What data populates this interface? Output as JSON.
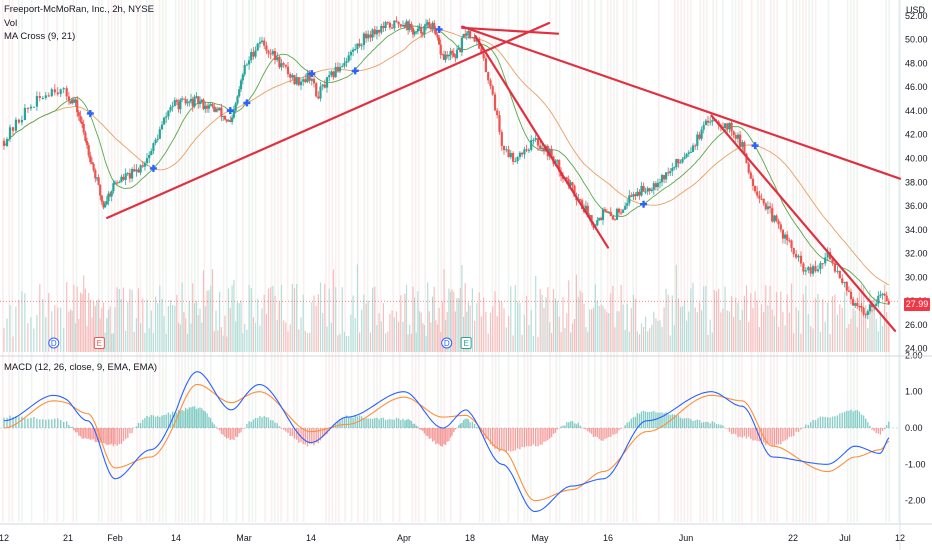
{
  "header": {
    "symbol_line": "Freeport-McMoRan, Inc., 2h, NYSE",
    "volume_label": "Vol",
    "ma_label": "MA Cross (9, 21)",
    "macd_label": "MACD (12, 26, close, 9, EMA, EMA)"
  },
  "price_axis": {
    "currency": "USD",
    "ticks": [
      "52.00",
      "50.00",
      "48.00",
      "46.00",
      "44.00",
      "42.00",
      "40.00",
      "38.00",
      "36.00",
      "34.00",
      "32.00",
      "30.00",
      "28.00",
      "26.00",
      "24.00"
    ],
    "last_price": "27.99"
  },
  "macd_axis": {
    "ticks": [
      "2.00",
      "1.00",
      "0.00",
      "-1.00",
      "-2.00"
    ]
  },
  "time_axis": {
    "ticks": [
      "12",
      "21",
      "Feb",
      "14",
      "Mar",
      "14",
      "Apr",
      "18",
      "May",
      "16",
      "Jun",
      "22",
      "Jul",
      "12"
    ]
  },
  "events": [
    {
      "letter": "D",
      "kind": "dividend"
    },
    {
      "letter": "E",
      "kind": "earnings"
    },
    {
      "letter": "D",
      "kind": "dividend"
    },
    {
      "letter": "E",
      "kind": "earnings"
    }
  ],
  "colors": {
    "up": "#26a69a",
    "down": "#ef5350",
    "trendline": "#e0303f",
    "ma_fast": "#7cbf6a",
    "ma_slow": "#e07a2f",
    "macd_line": "#2962ff",
    "signal_line": "#ff8f3a",
    "cross_marker": "#2962ff",
    "dividend": "#2962ff",
    "earnings": "#ef5350"
  },
  "chart_data": [
    {
      "type": "candlestick",
      "title": "Freeport-McMoRan, Inc., 2h, NYSE",
      "ylabel": "USD",
      "ylim": [
        24,
        53
      ],
      "close_path": [
        {
          "x": "Jan 12",
          "y": 41.5
        },
        {
          "x": "Jan 15",
          "y": 44.0
        },
        {
          "x": "Jan 19",
          "y": 46.0
        },
        {
          "x": "Jan 23",
          "y": 44.5
        },
        {
          "x": "Jan 26",
          "y": 41.0
        },
        {
          "x": "Jan 30",
          "y": 36.0
        },
        {
          "x": "Feb 2",
          "y": 38.0
        },
        {
          "x": "Feb 6",
          "y": 38.8
        },
        {
          "x": "Feb 9",
          "y": 40.5
        },
        {
          "x": "Feb 13",
          "y": 44.5
        },
        {
          "x": "Feb 19",
          "y": 44.8
        },
        {
          "x": "Feb 24",
          "y": 44.0
        },
        {
          "x": "Feb 27",
          "y": 42.8
        },
        {
          "x": "Mar 1",
          "y": 47.5
        },
        {
          "x": "Mar 4",
          "y": 50.0
        },
        {
          "x": "Mar 7",
          "y": 48.5
        },
        {
          "x": "Mar 11",
          "y": 46.5
        },
        {
          "x": "Mar 14",
          "y": 47.0
        },
        {
          "x": "Mar 15",
          "y": 45.2
        },
        {
          "x": "Mar 19",
          "y": 47.5
        },
        {
          "x": "Mar 21",
          "y": 48.5
        },
        {
          "x": "Mar 25",
          "y": 50.5
        },
        {
          "x": "Mar 28",
          "y": 51.0
        },
        {
          "x": "Apr 1",
          "y": 51.5
        },
        {
          "x": "Apr 4",
          "y": 50.5
        },
        {
          "x": "Apr 8",
          "y": 51.3
        },
        {
          "x": "Apr 11",
          "y": 48.5
        },
        {
          "x": "Apr 15",
          "y": 48.8
        },
        {
          "x": "Apr 17",
          "y": 50.8
        },
        {
          "x": "Apr 19",
          "y": 50.2
        },
        {
          "x": "Apr 22",
          "y": 46.0
        },
        {
          "x": "Apr 24",
          "y": 41.0
        },
        {
          "x": "Apr 26",
          "y": 40.0
        },
        {
          "x": "Apr 30",
          "y": 41.5
        },
        {
          "x": "May 3",
          "y": 40.5
        },
        {
          "x": "May 8",
          "y": 37.5
        },
        {
          "x": "May 13",
          "y": 34.5
        },
        {
          "x": "May 15",
          "y": 35.5
        },
        {
          "x": "May 17",
          "y": 35.0
        },
        {
          "x": "May 21",
          "y": 37.0
        },
        {
          "x": "May 24",
          "y": 37.5
        },
        {
          "x": "May 29",
          "y": 39.0
        },
        {
          "x": "Jun 3",
          "y": 41.5
        },
        {
          "x": "Jun 6",
          "y": 43.5
        },
        {
          "x": "Jun 10",
          "y": 42.5
        },
        {
          "x": "Jun 12",
          "y": 41.0
        },
        {
          "x": "Jun 14",
          "y": 38.0
        },
        {
          "x": "Jun 18",
          "y": 35.0
        },
        {
          "x": "Jun 21",
          "y": 33.0
        },
        {
          "x": "Jun 24",
          "y": 30.5
        },
        {
          "x": "Jun 26",
          "y": 30.5
        },
        {
          "x": "Jun 28",
          "y": 31.8
        },
        {
          "x": "Jul 1",
          "y": 29.5
        },
        {
          "x": "Jul 3",
          "y": 27.5
        },
        {
          "x": "Jul 5",
          "y": 27.0
        },
        {
          "x": "Jul 8",
          "y": 28.5
        },
        {
          "x": "Jul 10",
          "y": 27.99
        }
      ]
    },
    {
      "type": "line",
      "title": "MACD (12, 26, close, 9, EMA, EMA)",
      "ylim": [
        -2.5,
        2.0
      ],
      "series": [
        {
          "name": "MACD",
          "points": [
            {
              "x": "Jan 12",
              "y": 0.2
            },
            {
              "x": "Jan 19",
              "y": 0.9
            },
            {
              "x": "Jan 26",
              "y": 0.2
            },
            {
              "x": "Feb 2",
              "y": -1.4
            },
            {
              "x": "Feb 9",
              "y": -0.6
            },
            {
              "x": "Feb 19",
              "y": 1.55
            },
            {
              "x": "Feb 27",
              "y": 0.5
            },
            {
              "x": "Mar 4",
              "y": 1.2
            },
            {
              "x": "Mar 14",
              "y": -0.4
            },
            {
              "x": "Mar 21",
              "y": 0.3
            },
            {
              "x": "Apr 1",
              "y": 1.0
            },
            {
              "x": "Apr 11",
              "y": 0.0
            },
            {
              "x": "Apr 17",
              "y": 0.5
            },
            {
              "x": "Apr 24",
              "y": -1.0
            },
            {
              "x": "Apr 30",
              "y": -2.3
            },
            {
              "x": "May 8",
              "y": -1.6
            },
            {
              "x": "May 15",
              "y": -1.4
            },
            {
              "x": "May 24",
              "y": 0.2
            },
            {
              "x": "Jun 6",
              "y": 1.0
            },
            {
              "x": "Jun 12",
              "y": 0.6
            },
            {
              "x": "Jun 18",
              "y": -0.8
            },
            {
              "x": "Jun 28",
              "y": -1.0
            },
            {
              "x": "Jul 3",
              "y": -0.5
            },
            {
              "x": "Jul 8",
              "y": -0.7
            },
            {
              "x": "Jul 10",
              "y": -0.25
            }
          ]
        },
        {
          "name": "Signal",
          "points": [
            {
              "x": "Jan 12",
              "y": 0.0
            },
            {
              "x": "Jan 19",
              "y": 0.75
            },
            {
              "x": "Jan 26",
              "y": 0.4
            },
            {
              "x": "Feb 2",
              "y": -1.1
            },
            {
              "x": "Feb 9",
              "y": -0.8
            },
            {
              "x": "Feb 19",
              "y": 1.2
            },
            {
              "x": "Feb 27",
              "y": 0.7
            },
            {
              "x": "Mar 4",
              "y": 1.0
            },
            {
              "x": "Mar 14",
              "y": -0.1
            },
            {
              "x": "Mar 21",
              "y": 0.1
            },
            {
              "x": "Apr 1",
              "y": 0.85
            },
            {
              "x": "Apr 11",
              "y": 0.3
            },
            {
              "x": "Apr 17",
              "y": 0.35
            },
            {
              "x": "Apr 24",
              "y": -0.6
            },
            {
              "x": "Apr 30",
              "y": -2.0
            },
            {
              "x": "May 8",
              "y": -1.7
            },
            {
              "x": "May 15",
              "y": -1.2
            },
            {
              "x": "May 24",
              "y": -0.1
            },
            {
              "x": "Jun 6",
              "y": 0.9
            },
            {
              "x": "Jun 12",
              "y": 0.75
            },
            {
              "x": "Jun 18",
              "y": -0.5
            },
            {
              "x": "Jun 28",
              "y": -1.2
            },
            {
              "x": "Jul 3",
              "y": -0.8
            },
            {
              "x": "Jul 8",
              "y": -0.6
            },
            {
              "x": "Jul 10",
              "y": -0.35
            }
          ]
        }
      ]
    }
  ]
}
